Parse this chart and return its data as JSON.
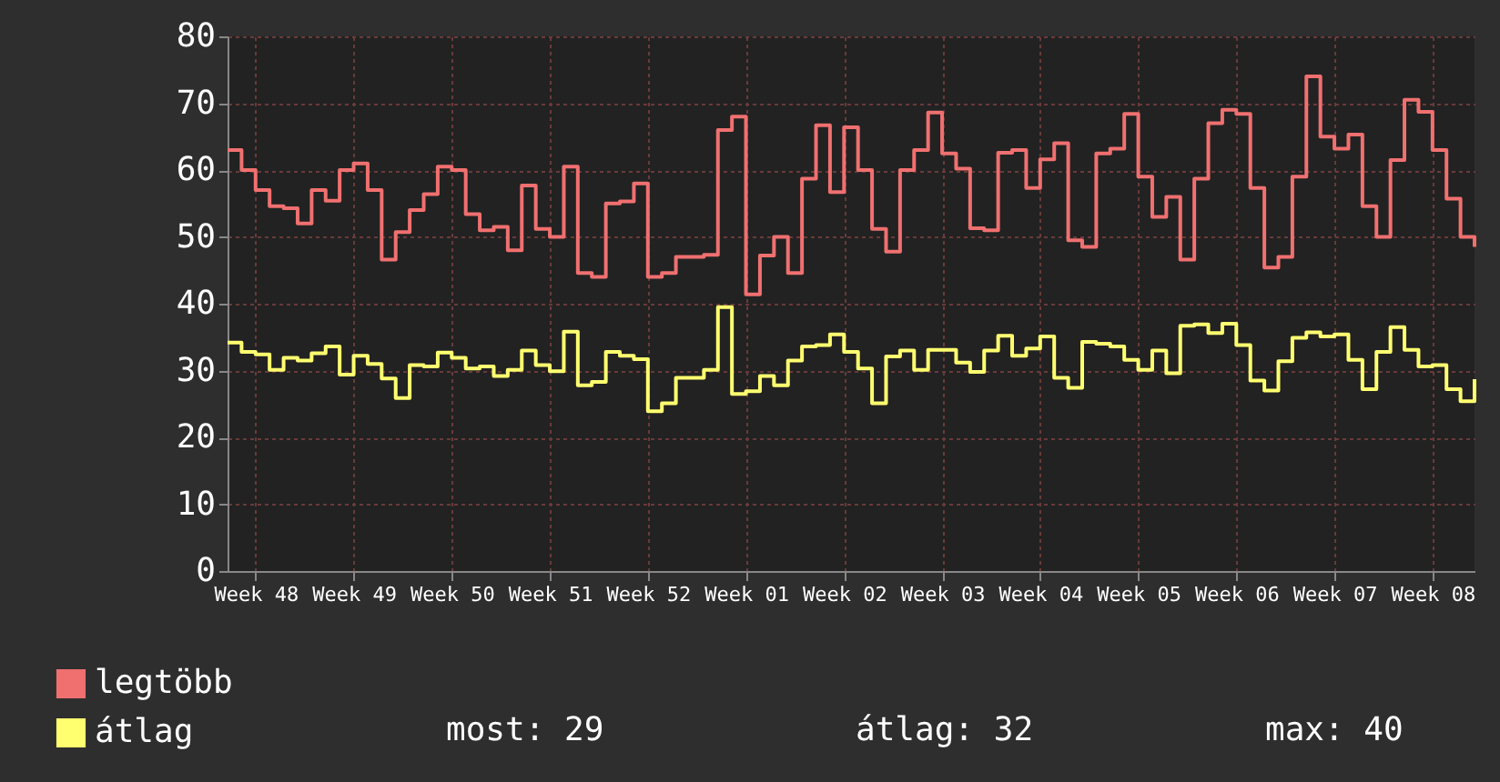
{
  "chart_data": {
    "type": "step",
    "categories": [
      null,
      null,
      "Week 48",
      null,
      null,
      null,
      null,
      null,
      null,
      "Week 49",
      null,
      null,
      null,
      null,
      null,
      null,
      "Week 50",
      null,
      null,
      null,
      null,
      null,
      null,
      "Week 51",
      null,
      null,
      null,
      null,
      null,
      null,
      "Week 52",
      null,
      null,
      null,
      null,
      null,
      null,
      "Week 01",
      null,
      null,
      null,
      null,
      null,
      null,
      "Week 02",
      null,
      null,
      null,
      null,
      null,
      null,
      "Week 03",
      null,
      null,
      null,
      null,
      null,
      null,
      "Week 04",
      null,
      null,
      null,
      null,
      null,
      null,
      "Week 05",
      null,
      null,
      null,
      null,
      null,
      null,
      "Week 06",
      null,
      null,
      null,
      null,
      null,
      null,
      "Week 07",
      null,
      null,
      null,
      null,
      null,
      null,
      "Week 08",
      null,
      null,
      null
    ],
    "series": [
      {
        "name": "legtöbb",
        "color": "#f07070",
        "values": [
          63,
          60,
          57,
          54.6,
          54.3,
          52,
          57,
          55.4,
          60,
          61,
          57,
          46.6,
          50.7,
          54,
          56.4,
          60.5,
          60,
          53.4,
          51,
          51.5,
          48,
          57.7,
          51.2,
          50,
          60.5,
          44.6,
          44,
          55,
          55.3,
          58,
          44,
          44.6,
          47,
          47,
          47.3,
          66,
          68,
          41.4,
          47.2,
          50,
          44.6,
          58.7,
          66.7,
          56.7,
          66.4,
          60,
          51.2,
          47.8,
          60,
          63,
          68.6,
          62.5,
          60.2,
          51.3,
          51,
          62.6,
          63,
          57.3,
          61.6,
          64,
          49.5,
          48.5,
          62.5,
          63.2,
          68.4,
          59,
          53,
          56,
          46.6,
          58.7,
          67,
          69,
          68.4,
          57.3,
          45.4,
          47,
          59,
          74,
          65,
          63.2,
          65.3,
          54.6,
          50,
          61.5,
          70.5,
          68.7,
          63,
          55.7,
          50,
          48.5
        ]
      },
      {
        "name": "átlag",
        "color": "#ffff70",
        "values": [
          34.2,
          32.8,
          32.4,
          30.1,
          31.9,
          31.5,
          32.6,
          33.6,
          29.4,
          32.2,
          31,
          28.8,
          25.9,
          30.8,
          30.6,
          32.7,
          31.9,
          30.3,
          30.6,
          29.2,
          30.1,
          33,
          30.8,
          29.9,
          35.8,
          27.8,
          28.3,
          32.8,
          32.2,
          31.7,
          23.9,
          25.1,
          28.9,
          28.9,
          30.1,
          39.5,
          26.5,
          26.9,
          29.2,
          27.8,
          31.5,
          33.6,
          33.8,
          35.4,
          32.8,
          30.3,
          25.1,
          32.1,
          33,
          30.1,
          33.1,
          33.1,
          31.2,
          29.8,
          33,
          35.2,
          32.2,
          33.3,
          35.1,
          28.9,
          27.4,
          34.3,
          34,
          33.6,
          31.6,
          30.1,
          33,
          29.6,
          36.7,
          36.9,
          35.6,
          37,
          33.8,
          28.5,
          27,
          31.4,
          34.9,
          35.7,
          35.1,
          35.4,
          31.6,
          27.2,
          32.8,
          36.5,
          33.1,
          30.6,
          30.8,
          27.2,
          25.4,
          28.7
        ]
      }
    ],
    "ylim": [
      0,
      80
    ],
    "yticks": [
      0,
      10,
      20,
      30,
      40,
      50,
      60,
      70,
      80
    ],
    "grid": true,
    "legend": "bottom left",
    "line_style": "solid",
    "annotations": [
      "most: 29",
      "átlag: 32",
      "max: 40"
    ]
  }
}
